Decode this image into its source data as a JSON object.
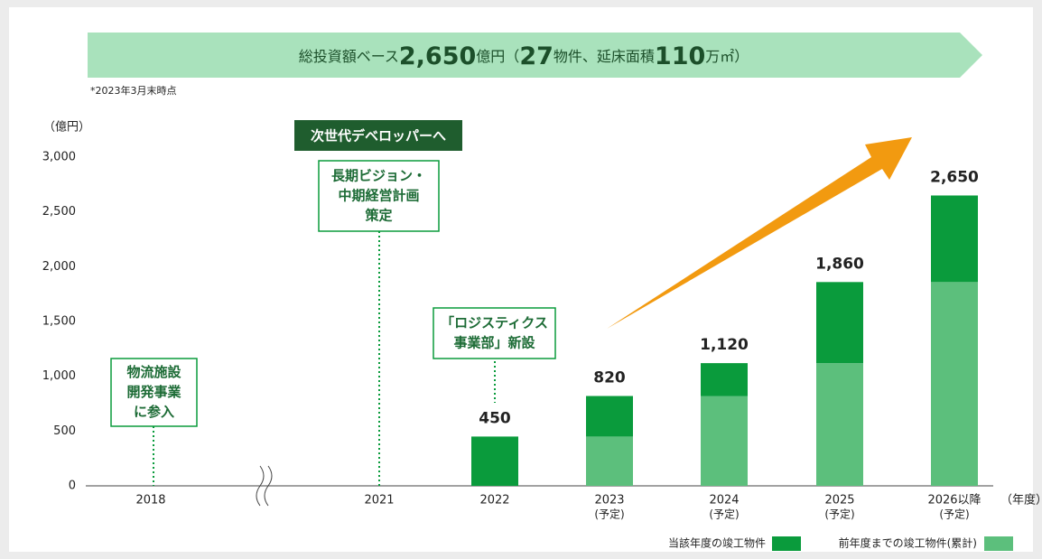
{
  "chart_data": {
    "type": "bar",
    "banner": [
      "総投資額ベース",
      "2,650",
      "億円（",
      "27",
      "物件、延床面積",
      "110",
      "万㎡）"
    ],
    "note": "*2023年3月末時点",
    "y_unit": "（億円）",
    "x_unit": "（年度）",
    "categories": [
      "2018",
      "2021",
      "2022",
      "2023",
      "2024",
      "2025",
      "2026以降"
    ],
    "category_notes": [
      null,
      null,
      null,
      "(予定)",
      "(予定)",
      "(予定)",
      "(予定)"
    ],
    "series": [
      {
        "name": "前年度までの竣工物件(累計)",
        "color": "#5cbf7c",
        "values": [
          null,
          null,
          null,
          450,
          820,
          1120,
          1860
        ]
      },
      {
        "name": "当該年度の竣工物件",
        "color": "#0a9b3c",
        "values": [
          null,
          null,
          450,
          370,
          300,
          740,
          790
        ]
      }
    ],
    "totals": {
      "values": [
        null,
        null,
        450,
        820,
        1120,
        1860,
        2650
      ],
      "value_labels": [
        null,
        null,
        "450",
        "820",
        "1,120",
        "1,860",
        "2,650"
      ]
    },
    "ylim": [
      0,
      3000
    ],
    "yticks": [
      0,
      500,
      {
        "value": 1000,
        "label": "1,000"
      },
      {
        "value": 1500,
        "label": "1,500"
      },
      {
        "value": 2000,
        "label": "2,000"
      },
      {
        "value": 2500,
        "label": "2,500"
      },
      {
        "value": 3000,
        "label": "3,000"
      }
    ],
    "annotations": [
      {
        "lines": [
          "物流施設",
          "開発事業",
          "に参入"
        ]
      },
      {
        "lines": [
          "長期ビジョン・",
          "中期経営計画",
          "策定"
        ]
      },
      {
        "lines": [
          "「ロジスティクス",
          "事業部」新設"
        ]
      }
    ],
    "tag": "次世代デベロッパーへ"
  }
}
